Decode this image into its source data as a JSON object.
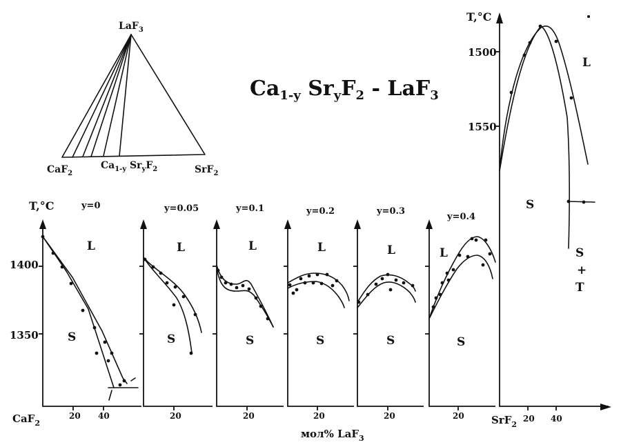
{
  "title": {
    "main": "Ca",
    "sub1": "1-y",
    "mid": " Sr",
    "sub2": "y",
    "mid2": "F",
    "sub3": "2",
    "tail": " - LaF",
    "sub4": "3"
  },
  "triangle": {
    "apex": {
      "base": "LaF",
      "sub": "3"
    },
    "left": {
      "base": "CaF",
      "sub": "2"
    },
    "middle": {
      "base1": "Ca",
      "sub1": "1-y",
      "base2": " Sr",
      "sub2": "y",
      "base3": "F",
      "sub3": "2"
    },
    "right": {
      "base": "SrF",
      "sub": "2"
    }
  },
  "axes": {
    "y_label": "T,°C",
    "y_ticks_bottom": [
      "1400",
      "1350"
    ],
    "y_ticks_right": [
      "1500",
      "1550"
    ],
    "x_label": "мол% LaF",
    "x_label_sub": "3",
    "x_origin_left": {
      "base": "CaF",
      "sub": "2"
    },
    "x_origin_right": {
      "base": "SrF",
      "sub": "2"
    },
    "x_ticks_first": [
      "20",
      "40"
    ],
    "x_ticks_right": [
      "20",
      "40"
    ],
    "x_tick_single": "20"
  },
  "panels": [
    {
      "y": "y=0",
      "L": "L",
      "S": "S"
    },
    {
      "y": "y=0.05",
      "L": "L",
      "S": "S"
    },
    {
      "y": "y=0.1",
      "L": "L",
      "S": "S"
    },
    {
      "y": "y=0.2",
      "L": "L",
      "S": "S"
    },
    {
      "y": "y=0.3",
      "L": "L",
      "S": "S"
    },
    {
      "y": "y=0.4",
      "L": "L",
      "S": "S"
    }
  ],
  "right_panel": {
    "L": "L",
    "S": "S",
    "ST_S": "S",
    "ST_plus": "+",
    "ST_T": "T"
  },
  "colors": {
    "ink": "#111111",
    "background": "#ffffff"
  }
}
